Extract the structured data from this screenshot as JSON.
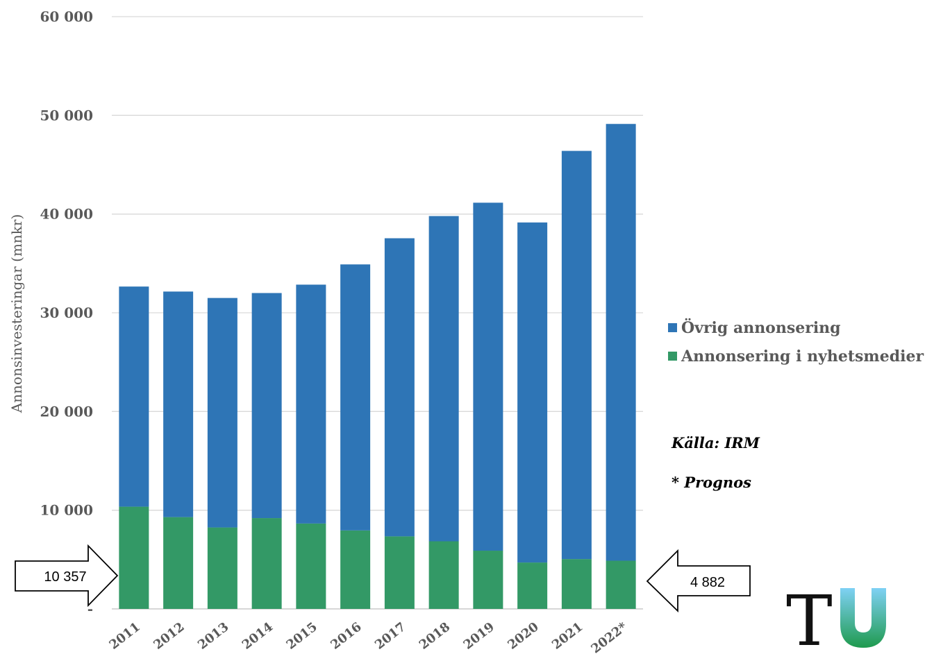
{
  "chart_data": {
    "type": "bar",
    "stacked": true,
    "categories": [
      "2011",
      "2012",
      "2013",
      "2014",
      "2015",
      "2016",
      "2017",
      "2018",
      "2019",
      "2020",
      "2021",
      "2022*"
    ],
    "series": [
      {
        "name": "Annonsering i nyhetsmedier",
        "color": "#339966",
        "values": [
          10357,
          9300,
          8250,
          9200,
          8650,
          7950,
          7350,
          6850,
          5900,
          4700,
          5050,
          4882
        ]
      },
      {
        "name": "Övrig annonsering",
        "color": "#2E75B6",
        "values": [
          22300,
          22850,
          23250,
          22800,
          24200,
          26950,
          30200,
          32950,
          35250,
          34450,
          41350,
          44250
        ]
      }
    ],
    "title": "",
    "xlabel": "",
    "ylabel": "Annonsinvesteringar (mnkr)",
    "ylim": [
      0,
      60000
    ],
    "yticks": [
      0,
      10000,
      20000,
      30000,
      40000,
      50000,
      60000
    ],
    "ytick_labels": [
      "-",
      "10 000",
      "20 000",
      "30 000",
      "40 000",
      "50 000",
      "60 000"
    ],
    "grid": true,
    "legend": "right"
  },
  "annotations": {
    "left_arrow": "10 357",
    "right_arrow": "4 882",
    "source": "Källa: IRM",
    "forecast": "* Prognos"
  },
  "logo": {
    "text_t": "T",
    "text_u": "U"
  }
}
